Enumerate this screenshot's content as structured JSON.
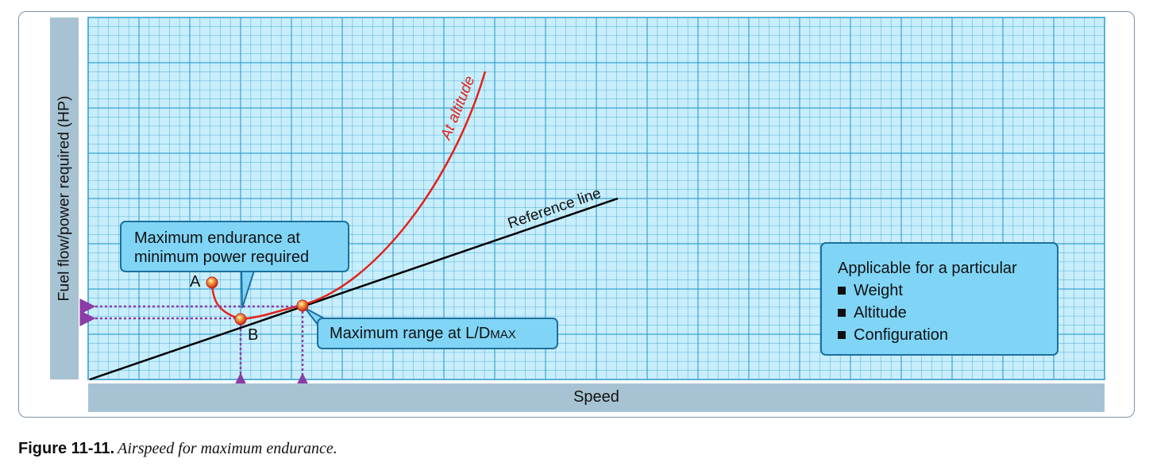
{
  "axes": {
    "y_label": "Fuel flow/power required (HP)",
    "x_label": "Speed"
  },
  "curves": {
    "at_altitude_label": "At altitude",
    "reference_label": "Reference line"
  },
  "points": {
    "a_label": "A",
    "b_label": "B"
  },
  "callouts": {
    "endurance_line1": "Maximum endurance at",
    "endurance_line2": "minimum power required",
    "range_prefix": "Maximum range at L/D",
    "range_suffix": "MAX",
    "applicable_title": "Applicable for a particular",
    "applicable_items": [
      "Weight",
      "Altitude",
      "Configuration"
    ]
  },
  "caption": {
    "number": "Figure 11-11.",
    "text": "Airspeed for maximum endurance."
  },
  "colors": {
    "grid_bg": "#c8eefb",
    "grid_line": "#2b9ad0",
    "curve": "#e2231a",
    "arrow": "#8a3da6",
    "callout_fill": "#80d5f6"
  }
}
